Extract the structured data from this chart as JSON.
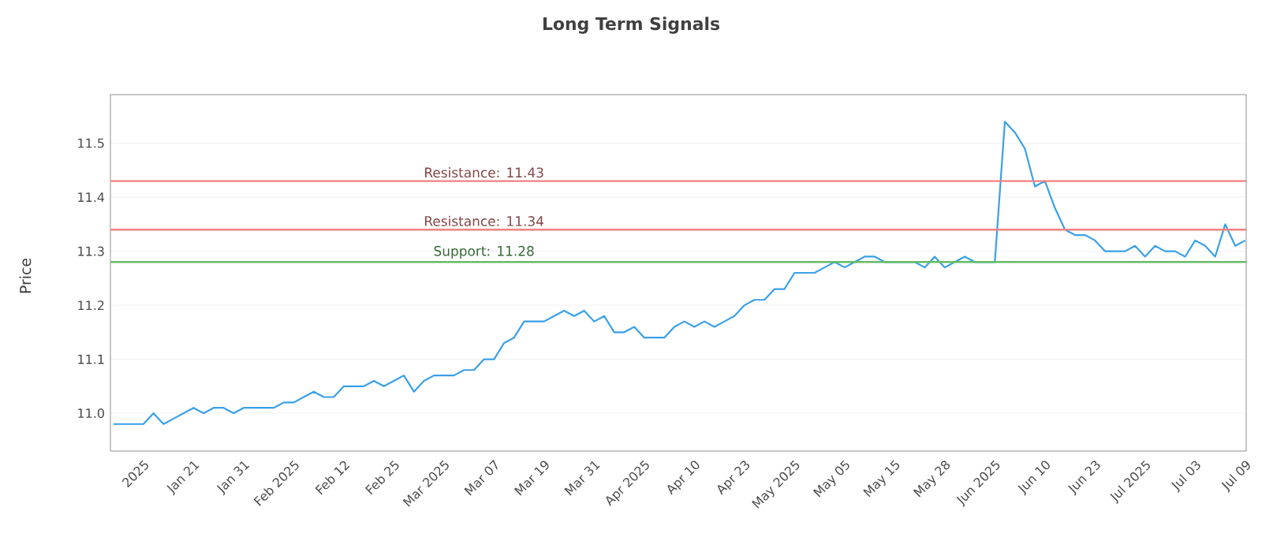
{
  "chart_data": {
    "type": "line",
    "title": "Long Term Signals",
    "ylabel": "Price",
    "categories": [
      null,
      null,
      null,
      "2025",
      null,
      null,
      null,
      null,
      "Jan 21",
      null,
      null,
      null,
      null,
      "Jan 31",
      null,
      null,
      null,
      null,
      "Feb 2025",
      null,
      null,
      null,
      null,
      "Feb 12",
      null,
      null,
      null,
      null,
      "Feb 25",
      null,
      null,
      null,
      null,
      "Mar 2025",
      null,
      null,
      null,
      null,
      "Mar 07",
      null,
      null,
      null,
      null,
      "Mar 19",
      null,
      null,
      null,
      null,
      "Mar 31",
      null,
      null,
      null,
      null,
      "Apr 2025",
      null,
      null,
      null,
      null,
      "Apr 10",
      null,
      null,
      null,
      null,
      "Apr 23",
      null,
      null,
      null,
      null,
      "May 2025",
      null,
      null,
      null,
      null,
      "May 05",
      null,
      null,
      null,
      null,
      "May 15",
      null,
      null,
      null,
      null,
      "May 28",
      null,
      null,
      null,
      null,
      "Jun 2025",
      null,
      null,
      null,
      null,
      "Jun 10",
      null,
      null,
      null,
      null,
      "Jun 23",
      null,
      null,
      null,
      null,
      "Jul 2025",
      null,
      null,
      null,
      null,
      "Jul 03",
      null,
      null,
      null,
      null,
      "Jul 09"
    ],
    "series": [
      {
        "color": "#3aa0e8",
        "values": [
          10.98,
          10.98,
          10.98,
          10.98,
          11.0,
          10.98,
          10.99,
          11.0,
          11.01,
          11.0,
          11.01,
          11.01,
          11.0,
          11.01,
          11.01,
          11.01,
          11.01,
          11.02,
          11.02,
          11.03,
          11.04,
          11.03,
          11.03,
          11.05,
          11.05,
          11.05,
          11.06,
          11.05,
          11.06,
          11.07,
          11.04,
          11.06,
          11.07,
          11.07,
          11.07,
          11.08,
          11.08,
          11.1,
          11.1,
          11.13,
          11.14,
          11.17,
          11.17,
          11.17,
          11.18,
          11.19,
          11.18,
          11.19,
          11.17,
          11.18,
          11.15,
          11.15,
          11.16,
          11.14,
          11.14,
          11.14,
          11.16,
          11.17,
          11.16,
          11.17,
          11.16,
          11.17,
          11.18,
          11.2,
          11.21,
          11.21,
          11.23,
          11.23,
          11.26,
          11.26,
          11.26,
          11.27,
          11.28,
          11.27,
          11.28,
          11.29,
          11.29,
          11.28,
          11.28,
          11.28,
          11.28,
          11.27,
          11.29,
          11.27,
          11.28,
          11.29,
          11.28,
          11.28,
          11.28,
          11.54,
          11.52,
          11.49,
          11.42,
          11.43,
          11.38,
          11.34,
          11.33,
          11.33,
          11.32,
          11.3,
          11.3,
          11.3,
          11.31,
          11.29,
          11.31,
          11.3,
          11.3,
          11.29,
          11.32,
          11.31,
          11.29,
          11.35,
          11.31,
          11.32
        ]
      }
    ],
    "ylim": [
      10.93,
      11.59
    ],
    "yticks": [
      {
        "value": 11.0,
        "label": "11.0"
      },
      11.1,
      11.2,
      11.3,
      11.4,
      11.5
    ],
    "ref_lines": [
      {
        "axis": "y",
        "value": 11.43,
        "label": "Resistance: 11.43",
        "color": "#f08080"
      },
      {
        "axis": "y",
        "value": 11.34,
        "label": "Resistance: 11.34",
        "color": "#f08080"
      },
      {
        "axis": "y",
        "value": 11.28,
        "label": "Support: 11.28",
        "color": "#66bb66"
      }
    ],
    "grid": "y",
    "legend": false,
    "marker": "none",
    "line_style": "solid"
  }
}
